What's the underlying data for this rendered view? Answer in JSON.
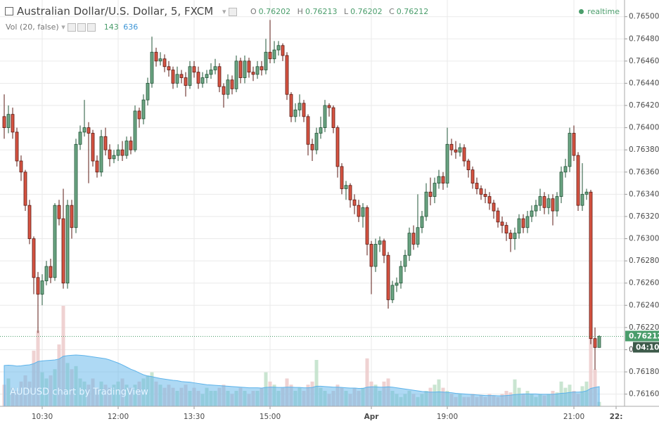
{
  "header": {
    "symbol": "Australian Dollar/U.S. Dollar, 5, FXCM",
    "o_label": "O",
    "h_label": "H",
    "l_label": "L",
    "c_label": "C",
    "status": "realtime",
    "volume_study": "Vol (20, false)",
    "watermark": "AUDUSD chart by TradingView",
    "countdown": "04:10"
  },
  "chart_data": {
    "type": "candlestick",
    "open": [
      0.7641,
      0.764,
      0.76412,
      0.76396,
      0.7637,
      0.7636,
      0.7633,
      0.763,
      0.76265,
      0.7625,
      0.76262,
      0.76275,
      0.76265,
      0.7633,
      0.76318,
      0.7626,
      0.7633,
      0.7631,
      0.76385,
      0.76396,
      0.764,
      0.76395,
      0.7637,
      0.7636,
      0.76392,
      0.7638,
      0.76372,
      0.76375,
      0.7638,
      0.76375,
      0.76388,
      0.7638,
      0.76415,
      0.76408,
      0.76425,
      0.7644,
      0.76468,
      0.7646,
      0.76462,
      0.76455,
      0.76452,
      0.7644,
      0.76448,
      0.76445,
      0.76438,
      0.76455,
      0.7645,
      0.7644,
      0.76445,
      0.76448,
      0.76452,
      0.76455,
      0.76437,
      0.7643,
      0.76443,
      0.76435,
      0.7646,
      0.76445,
      0.7646,
      0.7645,
      0.76448,
      0.76455,
      0.76452,
      0.76468,
      0.76462,
      0.7647,
      0.76474,
      0.76465,
      0.7643,
      0.7641,
      0.76416,
      0.76422,
      0.7641,
      0.76385,
      0.7638,
      0.76395,
      0.764,
      0.7642,
      0.76418,
      0.764,
      0.76365,
      0.76345,
      0.76348,
      0.76335,
      0.7633,
      0.7632,
      0.76328,
      0.76295,
      0.76275,
      0.76295,
      0.76298,
      0.76285,
      0.76245,
      0.76258,
      0.7626,
      0.76275,
      0.76285,
      0.76305,
      0.76295,
      0.7631,
      0.7632,
      0.76342,
      0.76338,
      0.7635,
      0.76356,
      0.7635,
      0.76385,
      0.7638,
      0.76378,
      0.76382,
      0.7637,
      0.76362,
      0.7635,
      0.76345,
      0.7634,
      0.76338,
      0.76332,
      0.76325,
      0.76315,
      0.76312,
      0.76305,
      0.763,
      0.76305,
      0.76318,
      0.7631,
      0.7632,
      0.76325,
      0.7633,
      0.76338,
      0.76328,
      0.76336,
      0.76325,
      0.76338,
      0.7636,
      0.76365,
      0.76395,
      0.76375,
      0.7633,
      0.7634,
      0.76342,
      0.7621,
      0.76202
    ],
    "high": [
      0.7643,
      0.7642,
      0.76418,
      0.764,
      0.76375,
      0.76362,
      0.76335,
      0.76302,
      0.7627,
      0.76268,
      0.7628,
      0.76282,
      0.76332,
      0.76335,
      0.76345,
      0.76335,
      0.76335,
      0.7639,
      0.76402,
      0.76425,
      0.76405,
      0.76398,
      0.76375,
      0.76398,
      0.764,
      0.76385,
      0.7638,
      0.76385,
      0.76388,
      0.76392,
      0.76392,
      0.7642,
      0.76418,
      0.7643,
      0.76445,
      0.76482,
      0.76472,
      0.76468,
      0.76466,
      0.7646,
      0.76455,
      0.76455,
      0.76452,
      0.7645,
      0.7646,
      0.7646,
      0.76455,
      0.7645,
      0.76452,
      0.76458,
      0.76462,
      0.76458,
      0.7644,
      0.76448,
      0.76447,
      0.76465,
      0.76463,
      0.76465,
      0.76463,
      0.76455,
      0.7646,
      0.7646,
      0.7648,
      0.76497,
      0.76478,
      0.76478,
      0.76476,
      0.76468,
      0.76432,
      0.76422,
      0.7643,
      0.76425,
      0.76412,
      0.7639,
      0.764,
      0.7641,
      0.76425,
      0.76422,
      0.7642,
      0.76402,
      0.76368,
      0.76352,
      0.7635,
      0.7634,
      0.76335,
      0.76332,
      0.7633,
      0.76298,
      0.763,
      0.76302,
      0.763,
      0.76288,
      0.76262,
      0.76265,
      0.7628,
      0.7629,
      0.7631,
      0.76312,
      0.7634,
      0.76325,
      0.7635,
      0.76355,
      0.76355,
      0.76362,
      0.7636,
      0.764,
      0.7639,
      0.76388,
      0.76386,
      0.76385,
      0.76372,
      0.76365,
      0.76355,
      0.76348,
      0.76345,
      0.76342,
      0.76335,
      0.76328,
      0.7632,
      0.76315,
      0.76308,
      0.7631,
      0.76322,
      0.76322,
      0.76325,
      0.7633,
      0.76335,
      0.76345,
      0.76342,
      0.7634,
      0.7634,
      0.76342,
      0.76365,
      0.76372,
      0.764,
      0.76402,
      0.76378,
      0.76368,
      0.76345,
      0.76344,
      0.7622,
      0.76213
    ],
    "low": [
      0.7639,
      0.76395,
      0.7639,
      0.76365,
      0.76352,
      0.76325,
      0.76295,
      0.7625,
      0.76215,
      0.7624,
      0.76258,
      0.7626,
      0.76262,
      0.76312,
      0.76255,
      0.76255,
      0.763,
      0.76305,
      0.7638,
      0.76392,
      0.7635,
      0.76365,
      0.76355,
      0.76356,
      0.76375,
      0.76365,
      0.76368,
      0.7637,
      0.7637,
      0.76372,
      0.76376,
      0.76378,
      0.764,
      0.76403,
      0.7642,
      0.76436,
      0.76455,
      0.76456,
      0.7645,
      0.76446,
      0.76435,
      0.76436,
      0.7644,
      0.76428,
      0.76435,
      0.76445,
      0.76435,
      0.76436,
      0.7644,
      0.76444,
      0.76448,
      0.76432,
      0.76418,
      0.76426,
      0.7643,
      0.76432,
      0.7644,
      0.7644,
      0.76445,
      0.76442,
      0.76444,
      0.76447,
      0.76448,
      0.76458,
      0.76458,
      0.76465,
      0.7646,
      0.76425,
      0.76405,
      0.76405,
      0.7641,
      0.76405,
      0.76375,
      0.7637,
      0.76376,
      0.7639,
      0.76396,
      0.7641,
      0.76395,
      0.76355,
      0.7634,
      0.76335,
      0.76328,
      0.76322,
      0.76315,
      0.7631,
      0.76285,
      0.7625,
      0.7627,
      0.76288,
      0.76278,
      0.76237,
      0.76242,
      0.76252,
      0.76255,
      0.7627,
      0.7628,
      0.7629,
      0.76292,
      0.76305,
      0.76316,
      0.7633,
      0.76332,
      0.76345,
      0.76344,
      0.76346,
      0.76375,
      0.76372,
      0.76374,
      0.76365,
      0.76355,
      0.76345,
      0.7634,
      0.76335,
      0.76332,
      0.76326,
      0.76318,
      0.7631,
      0.76305,
      0.76298,
      0.76288,
      0.7629,
      0.763,
      0.76305,
      0.76305,
      0.76315,
      0.7632,
      0.76325,
      0.76322,
      0.76322,
      0.76312,
      0.7632,
      0.76332,
      0.76355,
      0.7636,
      0.7637,
      0.76325,
      0.76325,
      0.76335,
      0.76205,
      0.76182,
      0.76202
    ],
    "close": [
      0.764,
      0.76412,
      0.76396,
      0.7637,
      0.7636,
      0.7633,
      0.763,
      0.76265,
      0.7625,
      0.76262,
      0.76275,
      0.76265,
      0.7633,
      0.76318,
      0.7626,
      0.7633,
      0.7631,
      0.76385,
      0.76396,
      0.764,
      0.76395,
      0.7637,
      0.7636,
      0.76392,
      0.7638,
      0.76372,
      0.76375,
      0.7638,
      0.76375,
      0.76388,
      0.7638,
      0.76415,
      0.76408,
      0.76425,
      0.7644,
      0.76468,
      0.7646,
      0.76462,
      0.76455,
      0.76452,
      0.7644,
      0.76448,
      0.76445,
      0.76438,
      0.76455,
      0.7645,
      0.7644,
      0.76445,
      0.76448,
      0.76452,
      0.76455,
      0.76437,
      0.7643,
      0.76443,
      0.76435,
      0.7646,
      0.76445,
      0.7646,
      0.7645,
      0.76448,
      0.76455,
      0.76452,
      0.76468,
      0.76462,
      0.7647,
      0.76474,
      0.76465,
      0.7643,
      0.7641,
      0.76416,
      0.76422,
      0.7641,
      0.76385,
      0.7638,
      0.76395,
      0.764,
      0.7642,
      0.76418,
      0.764,
      0.76365,
      0.76345,
      0.76348,
      0.76335,
      0.7633,
      0.7632,
      0.76328,
      0.76295,
      0.76275,
      0.76295,
      0.76298,
      0.76285,
      0.76245,
      0.76258,
      0.7626,
      0.76275,
      0.76285,
      0.76305,
      0.76295,
      0.7631,
      0.7632,
      0.76342,
      0.76338,
      0.7635,
      0.76356,
      0.7635,
      0.76385,
      0.7638,
      0.76378,
      0.76382,
      0.7637,
      0.76362,
      0.7635,
      0.76345,
      0.7634,
      0.76338,
      0.76332,
      0.76325,
      0.76315,
      0.76312,
      0.76305,
      0.763,
      0.76305,
      0.76318,
      0.7631,
      0.7632,
      0.76325,
      0.7633,
      0.76338,
      0.76328,
      0.76336,
      0.76325,
      0.76338,
      0.7636,
      0.76365,
      0.76395,
      0.76375,
      0.7633,
      0.7634,
      0.76342,
      0.7621,
      0.76202,
      0.76212
    ],
    "up_color": "#6ba583",
    "up_border": "#225437",
    "down_color": "#d75442",
    "down_border": "#5b1a13",
    "xlim": [
      -1,
      147
    ],
    "xticks": [
      {
        "value": 9,
        "label": "10:30"
      },
      {
        "value": 27,
        "label": "12:00"
      },
      {
        "value": 45,
        "label": "13:30"
      },
      {
        "value": 63,
        "label": "15:00"
      },
      {
        "value": 87,
        "label": "Apr"
      },
      {
        "value": 105,
        "label": "19:00"
      },
      {
        "value": 135,
        "label": "21:00"
      },
      {
        "value": 145,
        "label": "22:"
      }
    ],
    "ylim": [
      0.76149,
      0.76515
    ],
    "yticks": [
      {
        "value": 0.765,
        "label": "0.76500"
      },
      {
        "value": 0.7648,
        "label": "0.76480"
      },
      {
        "value": 0.7646,
        "label": "0.76460"
      },
      {
        "value": 0.7644,
        "label": "0.76440"
      },
      {
        "value": 0.7642,
        "label": "0.76420"
      },
      {
        "value": 0.764,
        "label": "0.76400"
      },
      {
        "value": 0.7638,
        "label": "0.76380"
      },
      {
        "value": 0.7636,
        "label": "0.76360"
      },
      {
        "value": 0.7634,
        "label": "0.76340"
      },
      {
        "value": 0.7632,
        "label": "0.76320"
      },
      {
        "value": 0.763,
        "label": "0.76300"
      },
      {
        "value": 0.7628,
        "label": "0.76280"
      },
      {
        "value": 0.7626,
        "label": "0.76260"
      },
      {
        "value": 0.7624,
        "label": "0.76240"
      },
      {
        "value": 0.7622,
        "label": "0.76220"
      },
      {
        "value": 0.762,
        "label": "0.76200"
      },
      {
        "value": 0.7618,
        "label": "0.76180"
      },
      {
        "value": 0.7616,
        "label": "0.76160"
      }
    ],
    "grid": true,
    "volume": {
      "type": "bar",
      "values": [
        700,
        900,
        600,
        500,
        800,
        1000,
        800,
        1800,
        2450,
        1100,
        900,
        1000,
        1200,
        2000,
        3250,
        1400,
        1200,
        1300,
        900,
        800,
        700,
        900,
        600,
        800,
        700,
        600,
        700,
        800,
        900,
        700,
        600,
        700,
        800,
        900,
        1000,
        1100,
        800,
        700,
        600,
        700,
        600,
        500,
        600,
        700,
        500,
        600,
        500,
        400,
        600,
        500,
        500,
        600,
        700,
        500,
        400,
        500,
        600,
        500,
        400,
        500,
        500,
        600,
        1100,
        800,
        700,
        500,
        600,
        900,
        700,
        500,
        600,
        500,
        700,
        800,
        1500,
        600,
        500,
        400,
        500,
        700,
        600,
        500,
        400,
        600,
        500,
        600,
        1550,
        800,
        700,
        500,
        800,
        900,
        500,
        400,
        300,
        400,
        500,
        400,
        300,
        400,
        500,
        600,
        700,
        870,
        600,
        500,
        400,
        300,
        400,
        300,
        300,
        400,
        300,
        350,
        300,
        400,
        350,
        300,
        400,
        500,
        450,
        870,
        600,
        400,
        500,
        400,
        300,
        400,
        350,
        400,
        500,
        450,
        800,
        600,
        700,
        500,
        400,
        650,
        800,
        2450,
        1200,
        143
      ],
      "ma_values": [
        1320,
        1330,
        1320,
        1300,
        1310,
        1330,
        1340,
        1380,
        1450,
        1470,
        1480,
        1490,
        1500,
        1530,
        1620,
        1640,
        1650,
        1660,
        1650,
        1640,
        1620,
        1600,
        1580,
        1560,
        1540,
        1500,
        1450,
        1400,
        1340,
        1270,
        1200,
        1150,
        1080,
        1020,
        980,
        960,
        930,
        900,
        880,
        860,
        840,
        830,
        800,
        790,
        780,
        760,
        740,
        720,
        700,
        690,
        680,
        670,
        660,
        650,
        640,
        630,
        620,
        610,
        600,
        600,
        600,
        590,
        610,
        620,
        620,
        610,
        610,
        620,
        620,
        610,
        610,
        600,
        600,
        610,
        650,
        650,
        640,
        630,
        620,
        620,
        610,
        600,
        590,
        590,
        580,
        580,
        620,
        630,
        630,
        620,
        620,
        630,
        620,
        600,
        580,
        560,
        540,
        520,
        500,
        480,
        470,
        460,
        460,
        470,
        460,
        450,
        440,
        420,
        410,
        400,
        390,
        380,
        370,
        360,
        350,
        350,
        350,
        340,
        340,
        350,
        360,
        380,
        390,
        400,
        400,
        400,
        400,
        390,
        390,
        390,
        390,
        400,
        420,
        430,
        450,
        460,
        460,
        470,
        500,
        580,
        610,
        636
      ],
      "vlim": [
        0,
        4000
      ],
      "up_color": "#bfe0c9",
      "down_color": "#eccaca",
      "ma_color": "#5db3ea"
    }
  }
}
